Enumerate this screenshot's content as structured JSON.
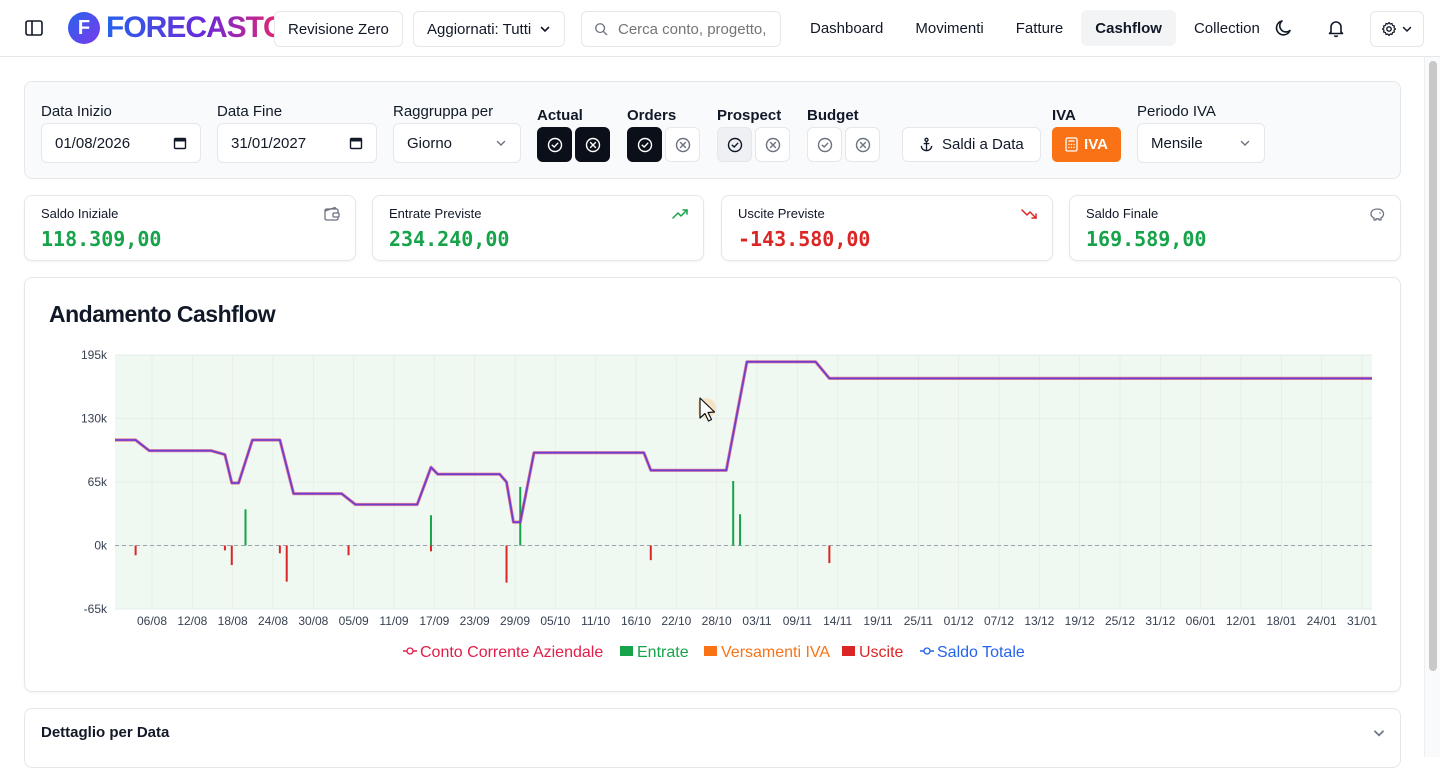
{
  "header": {
    "app_name": "FORECASTC",
    "logo_mark": "F",
    "project_button": "Revisione Zero",
    "updated_filter": "Aggiornati: Tutti",
    "search_placeholder": "Cerca conto, progetto,",
    "nav": [
      {
        "label": "Dashboard",
        "active": false
      },
      {
        "label": "Movimenti",
        "active": false
      },
      {
        "label": "Fatture",
        "active": false
      },
      {
        "label": "Cashflow",
        "active": true
      },
      {
        "label": "Collection",
        "active": false
      }
    ],
    "icons": [
      "sidebar-toggle-icon",
      "moon-icon",
      "bell-icon",
      "gear-icon",
      "chevron-down-icon"
    ]
  },
  "filters": {
    "start_date_label": "Data Inizio",
    "start_date": "01/08/2026",
    "end_date_label": "Data Fine",
    "end_date": "31/01/2027",
    "group_by_label": "Raggruppa per",
    "group_by_value": "Giorno",
    "actual_label": "Actual",
    "orders_label": "Orders",
    "prospect_label": "Prospect",
    "budget_label": "Budget",
    "saldi_button": "Saldi a Data",
    "iva_label": "IVA",
    "iva_button": "IVA",
    "iva_period_label": "Periodo IVA",
    "iva_period_value": "Mensile",
    "accent_color": "#f97316"
  },
  "stats": [
    {
      "label": "Saldo Iniziale",
      "value": "118.309,00",
      "icon": "wallet-icon",
      "color": "#16a34a"
    },
    {
      "label": "Entrate Previste",
      "value": "234.240,00",
      "icon": "trending-up-icon",
      "color": "#16a34a"
    },
    {
      "label": "Uscite Previste",
      "value": "-143.580,00",
      "icon": "trending-down-icon",
      "color": "#dc2626"
    },
    {
      "label": "Saldo Finale",
      "value": "169.589,00",
      "icon": "piggy-bank-icon",
      "color": "#16a34a"
    }
  ],
  "chart": {
    "title": "Andamento Cashflow",
    "detail_title": "Dettaglio per Data"
  },
  "chart_data": {
    "type": "line",
    "title": "Andamento Cashflow",
    "ylim": [
      -65000,
      195000
    ],
    "yticks": [
      "195k",
      "130k",
      "65k",
      "0k",
      "-65k"
    ],
    "ytick_values": [
      195000,
      130000,
      65000,
      0,
      -65000
    ],
    "x_tick_labels": [
      "06/08",
      "12/08",
      "18/08",
      "24/08",
      "30/08",
      "05/09",
      "11/09",
      "17/09",
      "23/09",
      "29/09",
      "05/10",
      "11/10",
      "16/10",
      "22/10",
      "28/10",
      "03/11",
      "09/11",
      "14/11",
      "19/11",
      "25/11",
      "01/12",
      "07/12",
      "13/12",
      "19/12",
      "25/12",
      "31/12",
      "06/01",
      "12/01",
      "18/01",
      "24/01",
      "31/01"
    ],
    "x_start": "2026-08-01",
    "x_end": "2027-01-31",
    "grid": true,
    "legend_position": "bottom",
    "legend": [
      {
        "name": "Conto Corrente Aziendale",
        "color": "#e11d48",
        "marker": "line"
      },
      {
        "name": "Entrate",
        "color": "#16a34a",
        "marker": "square"
      },
      {
        "name": "Versamenti IVA",
        "color": "#f97316",
        "marker": "square"
      },
      {
        "name": "Uscite",
        "color": "#dc2626",
        "marker": "square"
      },
      {
        "name": "Saldo Totale",
        "color": "#2563eb",
        "marker": "line"
      }
    ],
    "series": [
      {
        "name": "Saldo Totale",
        "points": [
          [
            "2026-08-01",
            108000
          ],
          [
            "2026-08-04",
            108000
          ],
          [
            "2026-08-06",
            97000
          ],
          [
            "2026-08-15",
            97000
          ],
          [
            "2026-08-17",
            93000
          ],
          [
            "2026-08-18",
            64000
          ],
          [
            "2026-08-19",
            64000
          ],
          [
            "2026-08-21",
            108000
          ],
          [
            "2026-08-25",
            108000
          ],
          [
            "2026-08-27",
            53000
          ],
          [
            "2026-09-03",
            53000
          ],
          [
            "2026-09-05",
            42000
          ],
          [
            "2026-09-14",
            42000
          ],
          [
            "2026-09-16",
            80000
          ],
          [
            "2026-09-17",
            73000
          ],
          [
            "2026-09-26",
            73000
          ],
          [
            "2026-09-27",
            65000
          ],
          [
            "2026-09-28",
            24000
          ],
          [
            "2026-09-29",
            24000
          ],
          [
            "2026-10-01",
            95000
          ],
          [
            "2026-10-17",
            95000
          ],
          [
            "2026-10-18",
            77000
          ],
          [
            "2026-10-29",
            77000
          ],
          [
            "2026-11-01",
            188000
          ],
          [
            "2026-11-11",
            188000
          ],
          [
            "2026-11-13",
            171000
          ],
          [
            "2027-01-31",
            171000
          ]
        ]
      },
      {
        "name": "Entrate",
        "bars": [
          [
            "2026-08-20",
            37000
          ],
          [
            "2026-09-16",
            31000
          ],
          [
            "2026-09-29",
            60000
          ],
          [
            "2026-10-30",
            66000
          ],
          [
            "2026-10-31",
            32000
          ]
        ]
      },
      {
        "name": "Uscite",
        "bars": [
          [
            "2026-08-04",
            -10000
          ],
          [
            "2026-08-17",
            -5000
          ],
          [
            "2026-08-18",
            -20000
          ],
          [
            "2026-08-25",
            -8000
          ],
          [
            "2026-08-26",
            -37000
          ],
          [
            "2026-09-04",
            -10000
          ],
          [
            "2026-09-16",
            -6000
          ],
          [
            "2026-09-27",
            -38000
          ],
          [
            "2026-10-18",
            -15000
          ],
          [
            "2026-11-13",
            -18000
          ]
        ]
      }
    ]
  }
}
